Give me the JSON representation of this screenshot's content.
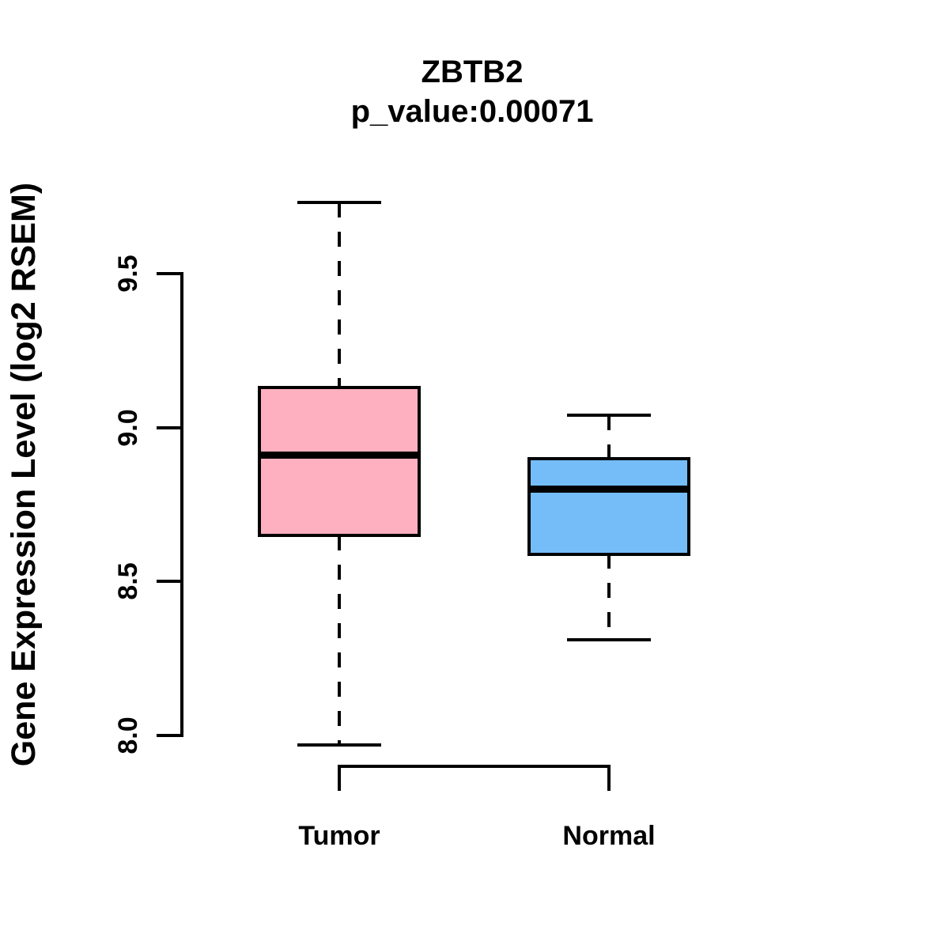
{
  "chart_data": {
    "type": "boxplot",
    "title": "ZBTB2",
    "subtitle": "p_value:0.00071",
    "ylabel": "Gene Expression Level (log2 RSEM)",
    "ylim": [
      7.85,
      9.85
    ],
    "yticks": [
      {
        "label": "8.0",
        "value": 8.0
      },
      {
        "label": "8.5",
        "value": 8.5
      },
      {
        "label": "9.0",
        "value": 9.0
      },
      {
        "label": "9.5",
        "value": 9.5
      }
    ],
    "grid": "off",
    "legend": "none",
    "series": [
      {
        "name": "Tumor",
        "color": "#ffb0c0",
        "whisker_low": 7.97,
        "q1": 8.65,
        "median": 8.91,
        "q3": 9.13,
        "whisker_high": 9.73
      },
      {
        "name": "Normal",
        "color": "#75bdf8",
        "whisker_low": 8.31,
        "q1": 8.59,
        "median": 8.8,
        "q3": 8.9,
        "whisker_high": 9.04
      }
    ],
    "line_color": "#000000",
    "background_color": "#ffffff"
  }
}
